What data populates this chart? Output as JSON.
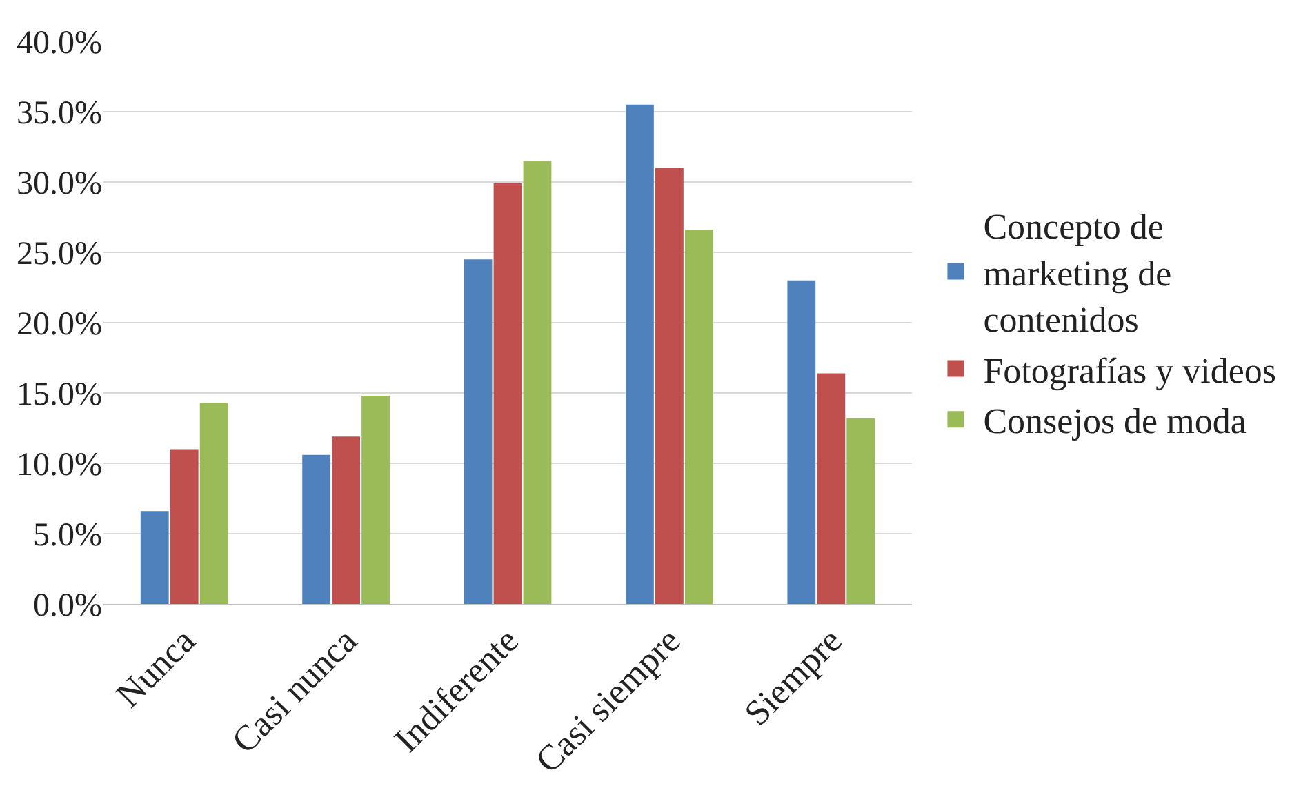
{
  "chart_data": {
    "type": "bar",
    "categories": [
      "Nunca",
      "Casi nunca",
      "Indiferente",
      "Casi siempre",
      "Siempre"
    ],
    "series": [
      {
        "name": "Concepto de marketing de contenidos",
        "color": "#4f81bd",
        "values": [
          6.6,
          10.6,
          24.5,
          35.5,
          23.0
        ]
      },
      {
        "name": "Fotografías y videos",
        "color": "#c0504d",
        "values": [
          11.0,
          11.9,
          29.9,
          31.0,
          16.4
        ]
      },
      {
        "name": "Consejos de moda",
        "color": "#9bbb59",
        "values": [
          14.3,
          14.8,
          31.5,
          26.6,
          13.2
        ]
      }
    ],
    "ylim": [
      0,
      40
    ],
    "yticks": [
      {
        "value": 0,
        "label": "0.0%"
      },
      {
        "value": 5,
        "label": "5.0%"
      },
      {
        "value": 10,
        "label": "10.0%"
      },
      {
        "value": 15,
        "label": "15.0%"
      },
      {
        "value": 20,
        "label": "20.0%"
      },
      {
        "value": 25,
        "label": "25.0%"
      },
      {
        "value": 30,
        "label": "30.0%"
      },
      {
        "value": 35,
        "label": "35.0%"
      },
      {
        "value": 40,
        "label": "40.0%"
      }
    ],
    "grid": "y",
    "legend": "right"
  }
}
